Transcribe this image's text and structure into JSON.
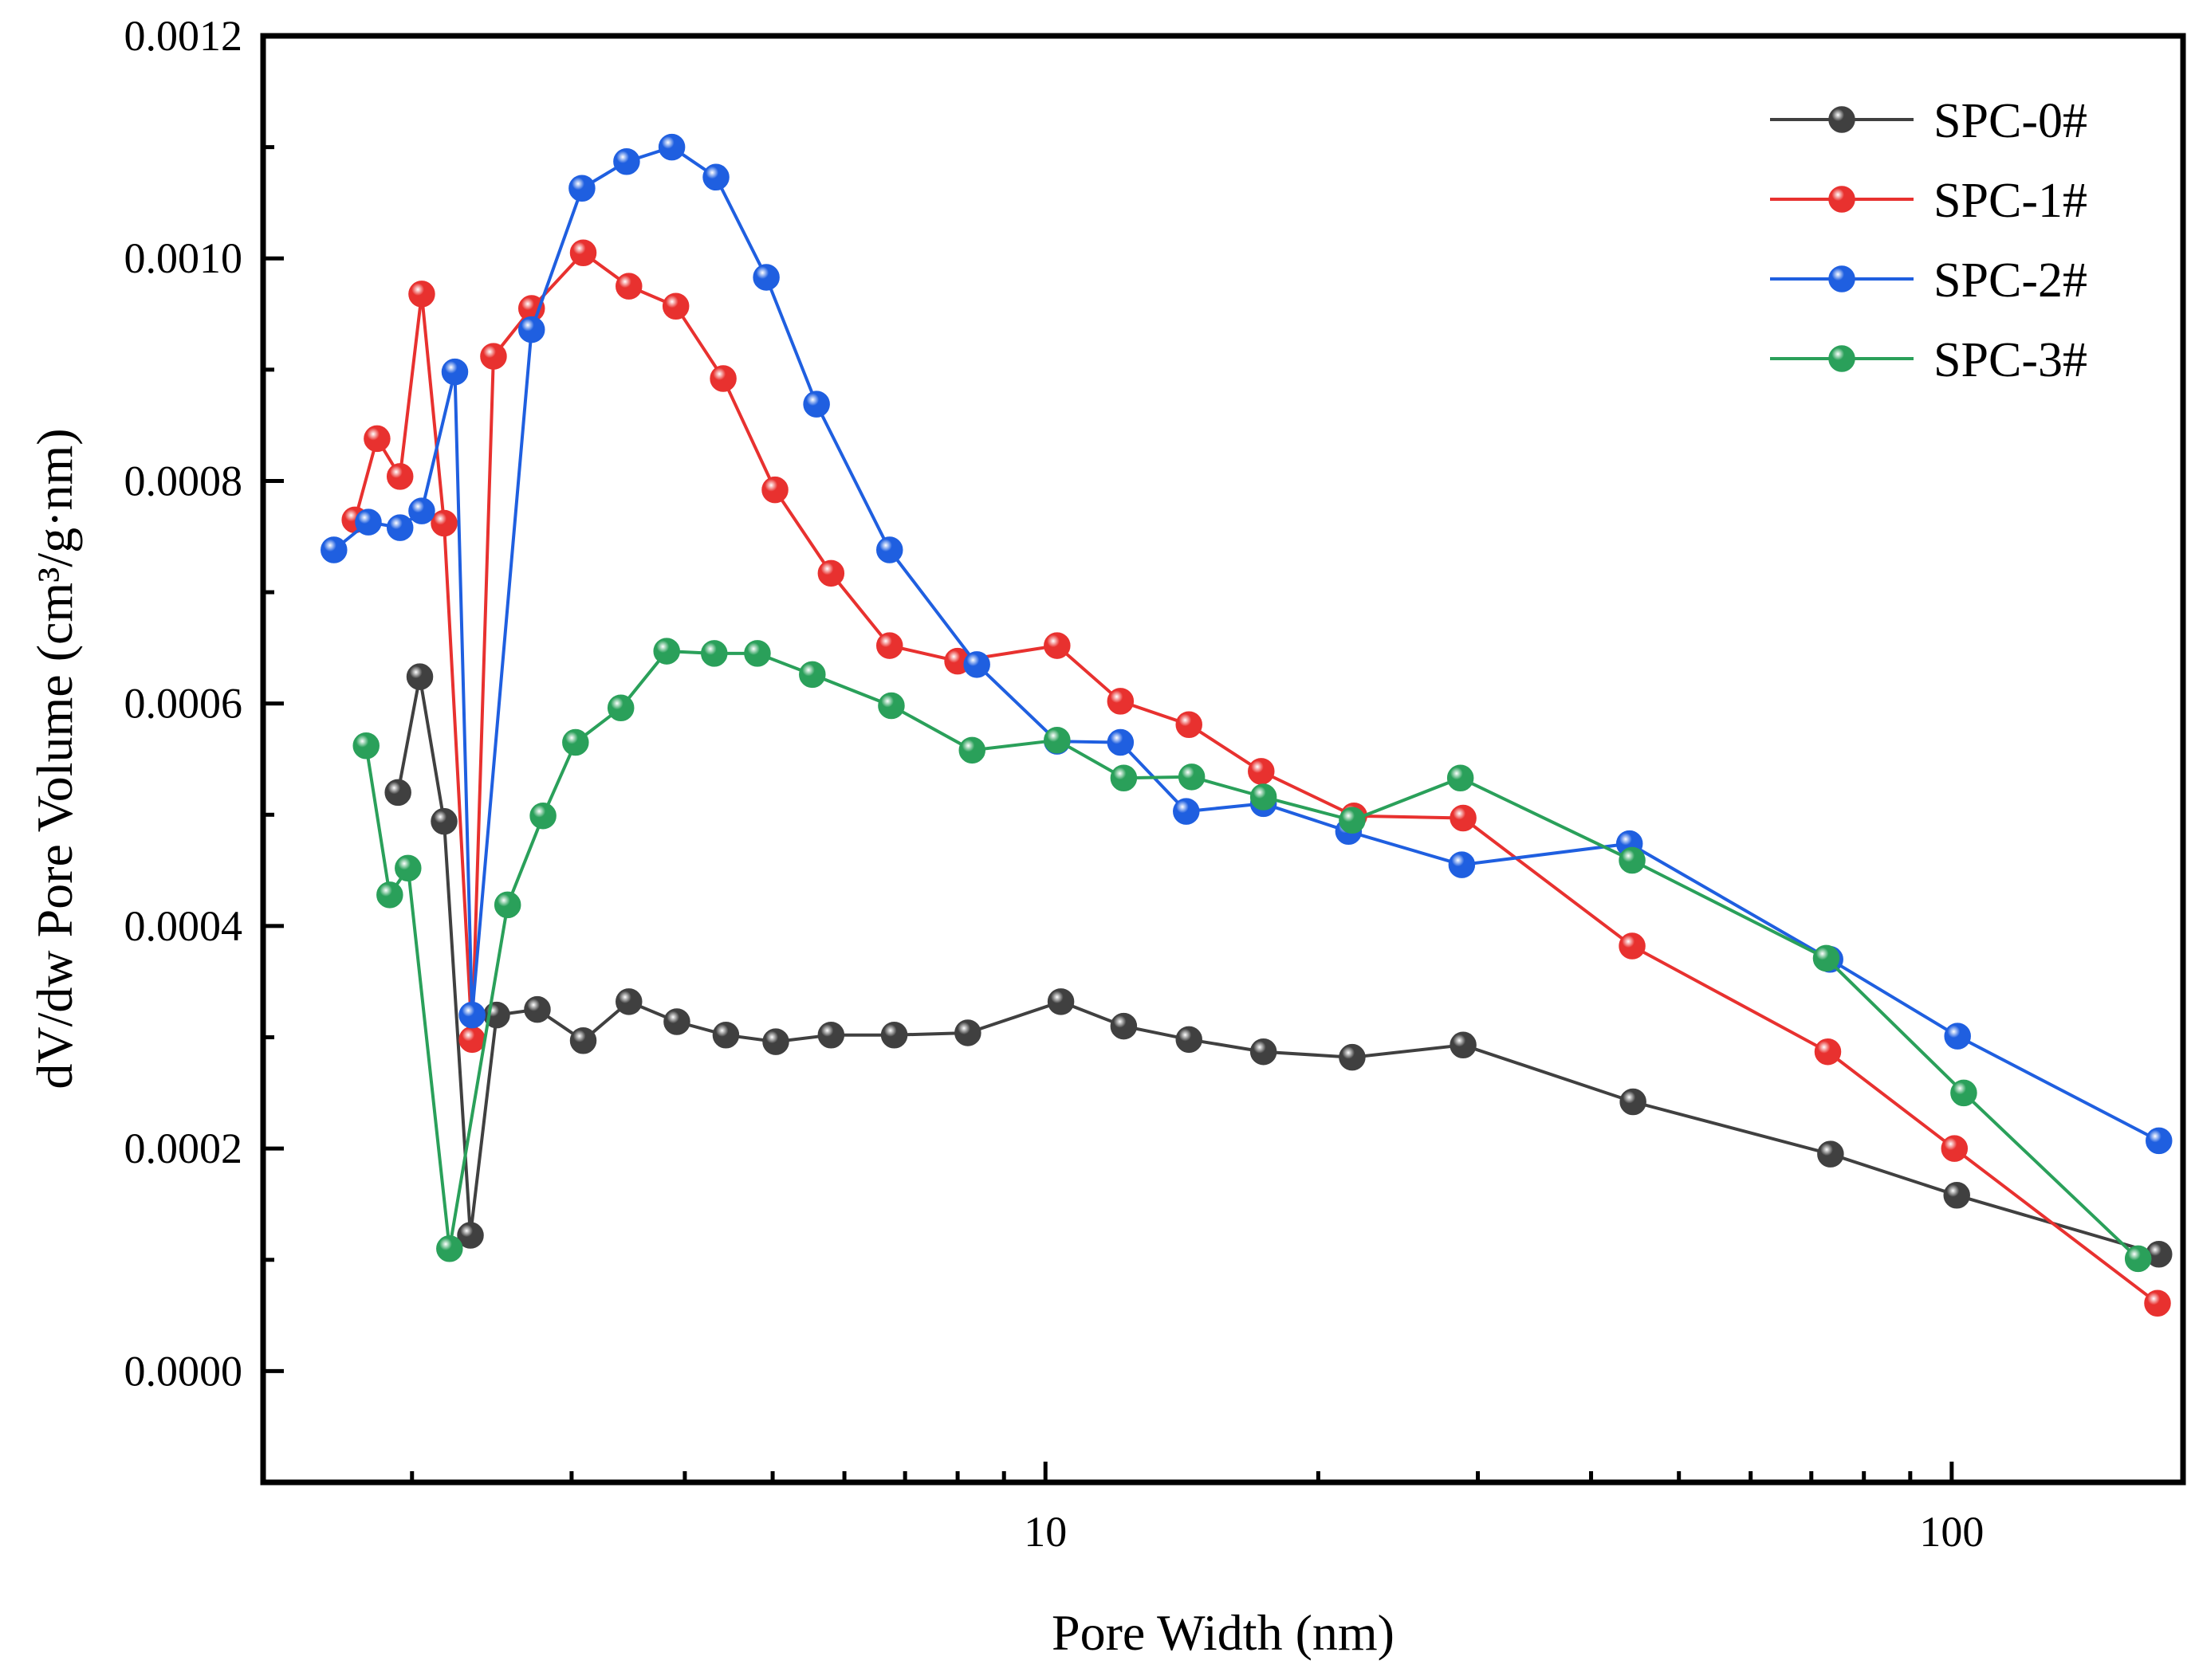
{
  "chart_data": {
    "type": "line",
    "title": "",
    "xlabel": "Pore Width (nm)",
    "ylabel": "dV/dw Pore Volume (cm³/g·nm)",
    "xscale": "log",
    "xlim": [
      1.37,
      180
    ],
    "ylim": [
      -0.0001,
      0.0012
    ],
    "grid": false,
    "legend_position": "top-right",
    "x_ticks": [
      {
        "value": 10,
        "label": "10"
      },
      {
        "value": 100,
        "label": "100"
      }
    ],
    "y_ticks": [
      {
        "value": 0.0,
        "label": "0.0000"
      },
      {
        "value": 0.0002,
        "label": "0.0002"
      },
      {
        "value": 0.0004,
        "label": "0.0004"
      },
      {
        "value": 0.0006,
        "label": "0.0006"
      },
      {
        "value": 0.0008,
        "label": "0.0008"
      },
      {
        "value": 0.001,
        "label": "0.0010"
      },
      {
        "value": 0.0012,
        "label": "0.0012"
      }
    ],
    "series": [
      {
        "name": "SPC-0#",
        "color": "#404040",
        "x": [
          1.93,
          2.04,
          2.17,
          2.32,
          2.48,
          2.75,
          3.09,
          3.47,
          3.92,
          4.44,
          5.04,
          5.8,
          6.81,
          8.21,
          10.4,
          12.2,
          14.4,
          17.4,
          21.8,
          28.9,
          44.5,
          73.5,
          101.3,
          169.3
        ],
        "y": [
          0.00052,
          0.000624,
          0.000494,
          0.000122,
          0.00032,
          0.000325,
          0.000297,
          0.000332,
          0.000314,
          0.000302,
          0.000296,
          0.000302,
          0.000302,
          0.000304,
          0.000332,
          0.00031,
          0.000298,
          0.000287,
          0.000282,
          0.000293,
          0.000242,
          0.000195,
          0.000158,
          0.000105
        ]
      },
      {
        "name": "SPC-1#",
        "color": "#e8312f",
        "x": [
          1.73,
          1.83,
          1.94,
          2.05,
          2.17,
          2.33,
          2.46,
          2.71,
          3.09,
          3.47,
          3.91,
          4.41,
          5.03,
          5.8,
          6.73,
          8.0,
          10.3,
          12.1,
          14.4,
          17.3,
          21.9,
          28.9,
          44.4,
          73.0,
          100.7,
          168.7
        ],
        "y": [
          0.000765,
          0.000838,
          0.000804,
          0.000968,
          0.000762,
          0.000298,
          0.000912,
          0.000955,
          0.001005,
          0.000975,
          0.000957,
          0.000892,
          0.000792,
          0.000717,
          0.000652,
          0.000638,
          0.000652,
          0.000602,
          0.000581,
          0.000539,
          0.000499,
          0.000497,
          0.000382,
          0.000287,
          0.0002,
          6.1e-05
        ]
      },
      {
        "name": "SPC-2#",
        "color": "#1f5fe0",
        "x": [
          1.64,
          1.79,
          1.94,
          2.05,
          2.23,
          2.33,
          2.71,
          3.08,
          3.45,
          3.87,
          4.33,
          4.92,
          5.59,
          6.73,
          8.4,
          10.3,
          12.1,
          14.3,
          17.4,
          21.6,
          28.8,
          44.1,
          73.4,
          101.5,
          169.3
        ],
        "y": [
          0.000738,
          0.000763,
          0.000758,
          0.000773,
          0.000898,
          0.00032,
          0.000936,
          0.001063,
          0.001087,
          0.0011,
          0.001073,
          0.000983,
          0.000869,
          0.000738,
          0.000635,
          0.000566,
          0.000565,
          0.000503,
          0.00051,
          0.000485,
          0.000455,
          0.000474,
          0.00037,
          0.000301,
          0.000207
        ]
      },
      {
        "name": "SPC-3#",
        "color": "#2aa05a",
        "x": [
          1.78,
          1.89,
          1.98,
          2.2,
          2.55,
          2.79,
          3.03,
          3.4,
          3.82,
          4.31,
          4.81,
          5.53,
          6.76,
          8.3,
          10.3,
          12.2,
          14.5,
          17.4,
          21.8,
          28.7,
          44.4,
          72.7,
          103.1,
          160.6
        ],
        "y": [
          0.000562,
          0.000428,
          0.000452,
          0.00011,
          0.000419,
          0.000499,
          0.000565,
          0.000596,
          0.000647,
          0.000645,
          0.000645,
          0.000626,
          0.000598,
          0.000558,
          0.000567,
          0.000533,
          0.000534,
          0.000516,
          0.000495,
          0.000533,
          0.000459,
          0.000371,
          0.00025,
          0.000101
        ]
      }
    ]
  }
}
